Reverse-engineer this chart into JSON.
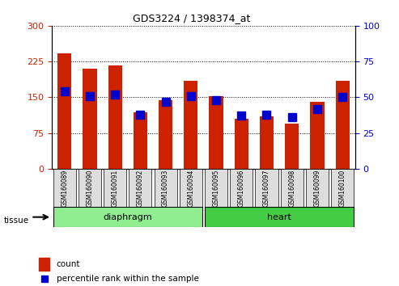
{
  "title": "GDS3224 / 1398374_at",
  "samples": [
    "GSM160089",
    "GSM160090",
    "GSM160091",
    "GSM160092",
    "GSM160093",
    "GSM160094",
    "GSM160095",
    "GSM160096",
    "GSM160097",
    "GSM160098",
    "GSM160099",
    "GSM160100"
  ],
  "counts": [
    242,
    210,
    217,
    118,
    143,
    185,
    153,
    105,
    110,
    95,
    140,
    185
  ],
  "percentiles": [
    54,
    51,
    52,
    38,
    47,
    51,
    48,
    37,
    38,
    36,
    42,
    50
  ],
  "tissues": [
    {
      "label": "diaphragm",
      "start": 0,
      "end": 6,
      "color": "#90EE90"
    },
    {
      "label": "heart",
      "start": 6,
      "end": 12,
      "color": "#44CC44"
    }
  ],
  "ylim_left": [
    0,
    300
  ],
  "ylim_right": [
    0,
    100
  ],
  "yticks_left": [
    0,
    75,
    150,
    225,
    300
  ],
  "yticks_right": [
    0,
    25,
    50,
    75,
    100
  ],
  "bar_color": "#CC2200",
  "percentile_color": "#0000CC",
  "background_color": "#FFFFFF",
  "plot_bg": "#FFFFFF",
  "tick_label_bg": "#DDDDDD",
  "tissue_label_left": "tissue",
  "legend_count": "count",
  "legend_percentile": "percentile rank within the sample"
}
